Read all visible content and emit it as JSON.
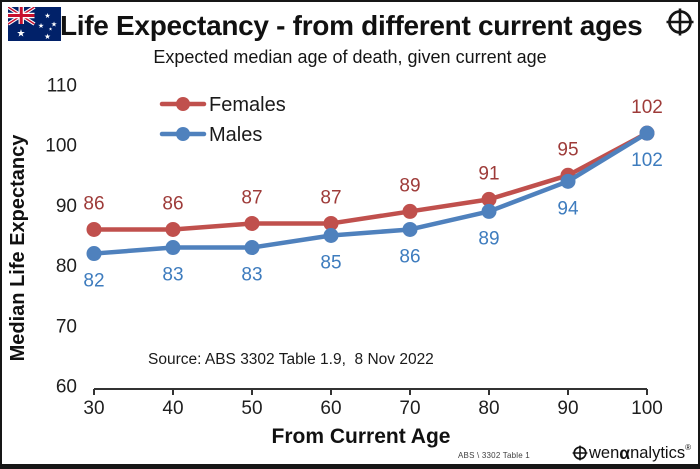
{
  "header": {
    "title": "Life Expectancy - from different current ages",
    "subtitle": "Expected median age of death, given current age"
  },
  "chart_data": {
    "type": "line",
    "title": "Life Expectancy - from different current ages",
    "subtitle": "Expected median age of death, given current age",
    "xlabel": "From Current Age",
    "ylabel": "Median Life Expectancy",
    "x": [
      30,
      40,
      50,
      60,
      70,
      80,
      90,
      100
    ],
    "y_ticks": [
      60,
      70,
      80,
      90,
      100,
      110
    ],
    "ylim": [
      60,
      110
    ],
    "grid": false,
    "legend_position": "top-left-inside",
    "series": [
      {
        "name": "Females",
        "values": [
          86,
          86,
          87,
          87,
          89,
          91,
          95,
          102
        ],
        "line_color": "#C0504D",
        "label_color": "#9E3B39",
        "label_position": "above",
        "marker": "circle"
      },
      {
        "name": "Males",
        "values": [
          82,
          83,
          83,
          85,
          86,
          89,
          94,
          102
        ],
        "line_color": "#4F81BD",
        "label_color": "#3E7CBE",
        "label_position": "below",
        "marker": "circle"
      }
    ]
  },
  "annotations": {
    "source": "Source: ABS 3302 Table 1.9,  8 Nov 2022"
  },
  "footer": {
    "table_ref": "ABS \\ 3302 Table 1",
    "logo": {
      "icon": "circle-cross-icon",
      "text_wen": "wen",
      "alpha": "α",
      "text_rest": "nalytics",
      "reg": "®"
    }
  },
  "icons": {
    "top_left": "australia-flag-icon",
    "top_right": "circle-cross-icon"
  },
  "colors": {
    "females_line": "#C0504D",
    "females_label": "#9E3B39",
    "males_line": "#4F81BD",
    "males_label": "#3E7CBE",
    "axis": "#333333",
    "frame": "#161616"
  }
}
